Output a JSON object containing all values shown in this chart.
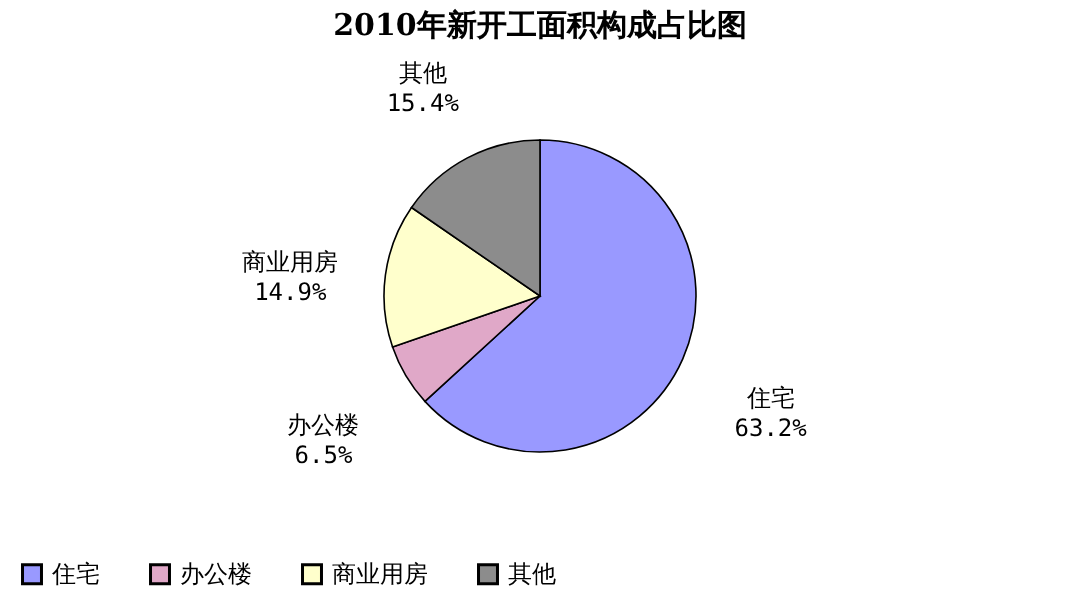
{
  "chart_data": {
    "type": "pie",
    "title": "2010年新开工面积构成占比图",
    "categories": [
      "住宅",
      "办公楼",
      "商业用房",
      "其他"
    ],
    "values": [
      63.2,
      6.5,
      14.9,
      15.4
    ],
    "value_labels": [
      "63.2%",
      "6.5%",
      "14.9%",
      "15.4%"
    ],
    "colors": [
      "#9999ff",
      "#e0a8c8",
      "#ffffcc",
      "#8c8c8c"
    ],
    "legend": "bottom"
  }
}
